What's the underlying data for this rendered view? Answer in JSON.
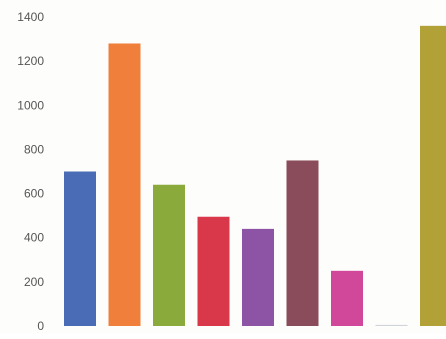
{
  "chart_data": {
    "type": "bar",
    "categories": [
      "",
      "",
      "",
      "",
      "",
      "",
      "",
      "",
      ""
    ],
    "values": [
      700,
      1280,
      640,
      495,
      440,
      750,
      250,
      5,
      1360
    ],
    "colors": [
      "#4a6bb5",
      "#ef7f3a",
      "#8aaa3c",
      "#d9374a",
      "#8d54a5",
      "#8a4c5a",
      "#d1489a",
      "#cfd3da",
      "#b1a137"
    ],
    "ylim": [
      0,
      1400
    ],
    "yticks": [
      "0",
      "200",
      "400",
      "600",
      "800",
      "1000",
      "1200",
      "1400"
    ],
    "grid": false,
    "legend": "none"
  }
}
